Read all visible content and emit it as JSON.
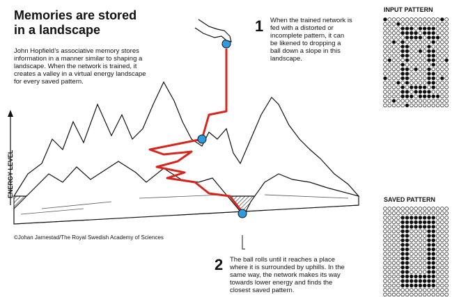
{
  "header": {
    "title_lines": [
      "Memories are stored",
      "in a landscape"
    ],
    "intro_lines": [
      "John Hopfield’s associative memory stores",
      "information in a manner similar to shaping a",
      "landscape. When the network is trained, it",
      "creates a valley in a virtual energy landscape",
      "for every saved pattern."
    ]
  },
  "step1": {
    "number": "1",
    "lines": [
      "When the trained network is",
      "fed with a distorted or",
      "incomplete pattern, it can",
      "be likened to dropping a",
      "ball down a slope in this",
      "landscape."
    ]
  },
  "step2": {
    "number": "2",
    "lines": [
      "The ball rolls until it reaches a place",
      "where it is surrounded by uphills. In the",
      "same way, the network makes its way",
      "towards lower energy and finds the",
      "closest saved pattern."
    ]
  },
  "axis_label": "ENERGY LEVEL",
  "credit": "©Johan Jarnestad/The Royal Swedish Academy of Sciences",
  "input_pattern": {
    "title": "INPUT PATTERN"
  },
  "saved_pattern": {
    "title": "SAVED PATTERN"
  }
}
